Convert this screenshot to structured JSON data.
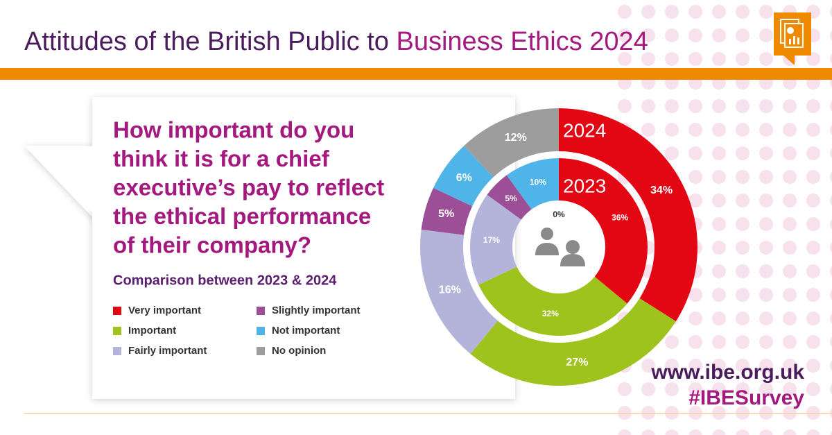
{
  "chart_data": {
    "type": "donut",
    "title": "Attitudes of the British Public to",
    "title_highlight": "Business Ethics 2024",
    "question_lines": [
      "How important do you",
      "think it is for a chief",
      "executive’s pay to reflect",
      "the ethical performance",
      "of their company?"
    ],
    "subtitle": "Comparison between 2023 & 2024",
    "categories": [
      "Very important",
      "Important",
      "Fairly important",
      "Slightly important",
      "Not important",
      "No opinion"
    ],
    "colors": [
      "#e30613",
      "#9dc31c",
      "#b4b4da",
      "#9c4f97",
      "#4fb4e7",
      "#9d9d9d"
    ],
    "series": [
      {
        "name": "2024",
        "values": [
          34,
          27,
          16,
          5,
          6,
          12
        ],
        "value_labels": [
          "34%",
          "27%",
          "16%",
          "5%",
          "6%",
          "12%"
        ]
      },
      {
        "name": "2023",
        "values": [
          36,
          32,
          17,
          5,
          10,
          0
        ],
        "value_labels": [
          "36%",
          "32%",
          "17%",
          "5%",
          "10%",
          "0%"
        ]
      }
    ],
    "website": "www.ibe.org.uk",
    "hashtag": "#IBESurvey"
  }
}
